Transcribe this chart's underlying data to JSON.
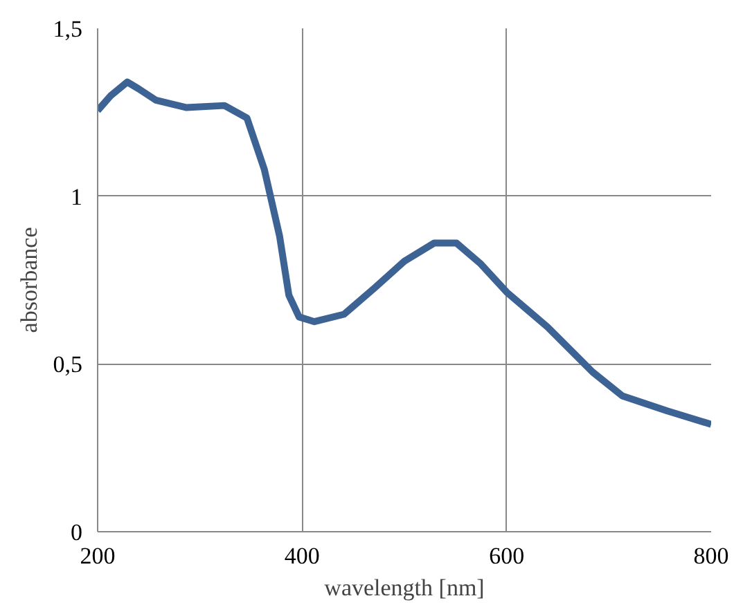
{
  "chart_data": {
    "type": "line",
    "xlabel": "wavelength [nm]",
    "ylabel": "absorbance",
    "x": [
      200,
      213,
      229,
      240,
      257,
      287,
      324,
      346,
      363,
      378,
      387,
      397,
      412,
      441,
      471,
      500,
      529,
      551,
      574,
      600,
      640,
      684,
      713,
      757,
      800
    ],
    "series": [
      {
        "color": "#3d6294",
        "values": [
          1.255,
          1.3,
          1.34,
          1.32,
          1.286,
          1.264,
          1.27,
          1.233,
          1.08,
          0.88,
          0.705,
          0.64,
          0.626,
          0.648,
          0.727,
          0.806,
          0.86,
          0.86,
          0.8,
          0.714,
          0.61,
          0.476,
          0.405,
          0.36,
          0.32
        ]
      }
    ],
    "xlim": [
      200,
      800
    ],
    "ylim": [
      0,
      1.5
    ],
    "xticks": [
      200,
      400,
      600,
      800
    ],
    "yticks": [
      0,
      {
        "value": 0.5,
        "label": "0,5"
      },
      1,
      {
        "value": 1.5,
        "label": "1,5"
      }
    ],
    "grid": true,
    "marker": "none",
    "line_style": "solid"
  }
}
